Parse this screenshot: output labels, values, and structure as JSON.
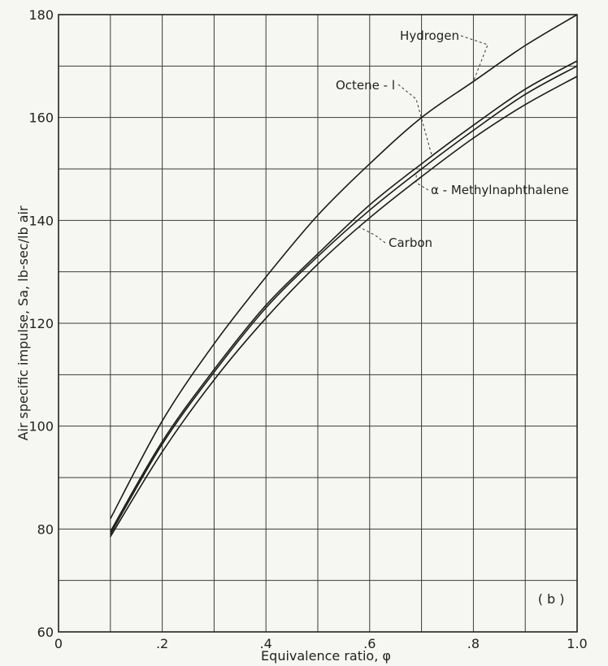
{
  "chart_data": {
    "type": "line",
    "title": "",
    "xlabel": "Equivalence ratio, φ",
    "ylabel": "Air specific impulse, Sa, lb-sec/lb air",
    "xlim": [
      0,
      1.0
    ],
    "ylim": [
      60,
      180
    ],
    "x_ticks": [
      0,
      0.2,
      0.4,
      0.6,
      0.8,
      1.0
    ],
    "x_tick_labels": [
      "0",
      ".2",
      ".4",
      ".6",
      ".8",
      "1.0"
    ],
    "y_ticks": [
      60,
      80,
      100,
      120,
      140,
      160,
      180
    ],
    "y_tick_labels": [
      "60",
      "80",
      "100",
      "120",
      "140",
      "160",
      "180"
    ],
    "x_minor_step": 0.1,
    "y_minor_step": 10,
    "grid": true,
    "panel_label": "( b )",
    "series": [
      {
        "name": "Hydrogen",
        "x": [
          0.1,
          0.2,
          0.3,
          0.4,
          0.5,
          0.6,
          0.7,
          0.8,
          0.9,
          1.0
        ],
        "y": [
          82,
          101,
          116,
          129,
          141,
          151,
          160,
          167,
          174,
          180
        ]
      },
      {
        "name": "Octene - l",
        "x": [
          0.1,
          0.2,
          0.3,
          0.4,
          0.5,
          0.6,
          0.7,
          0.8,
          0.9,
          1.0
        ],
        "y": [
          79.5,
          97,
          111,
          123.5,
          133.5,
          143,
          151,
          158.5,
          165.5,
          171
        ]
      },
      {
        "name": "α - Methylnaphthalene",
        "x": [
          0.1,
          0.2,
          0.3,
          0.4,
          0.5,
          0.6,
          0.7,
          0.8,
          0.9,
          1.0
        ],
        "y": [
          79,
          96.5,
          110.5,
          123,
          133,
          142,
          150,
          157.5,
          164.5,
          170
        ]
      },
      {
        "name": "Carbon",
        "x": [
          0.1,
          0.2,
          0.3,
          0.4,
          0.5,
          0.6,
          0.7,
          0.8,
          0.9,
          1.0
        ],
        "y": [
          78.5,
          95,
          109,
          121,
          131.5,
          140.5,
          148.5,
          156,
          162.5,
          168
        ]
      }
    ],
    "annotations": [
      {
        "text": "Hydrogen",
        "series": "Hydrogen",
        "at_x": 0.8
      },
      {
        "text": "Octene - l",
        "series": "Octene - l",
        "at_x": 0.72
      },
      {
        "text": "α - Methylnaphthalene",
        "series": "α - Methylnaphthalene",
        "at_x": 0.69
      },
      {
        "text": "Carbon",
        "series": "Carbon",
        "at_x": 0.58
      }
    ]
  }
}
